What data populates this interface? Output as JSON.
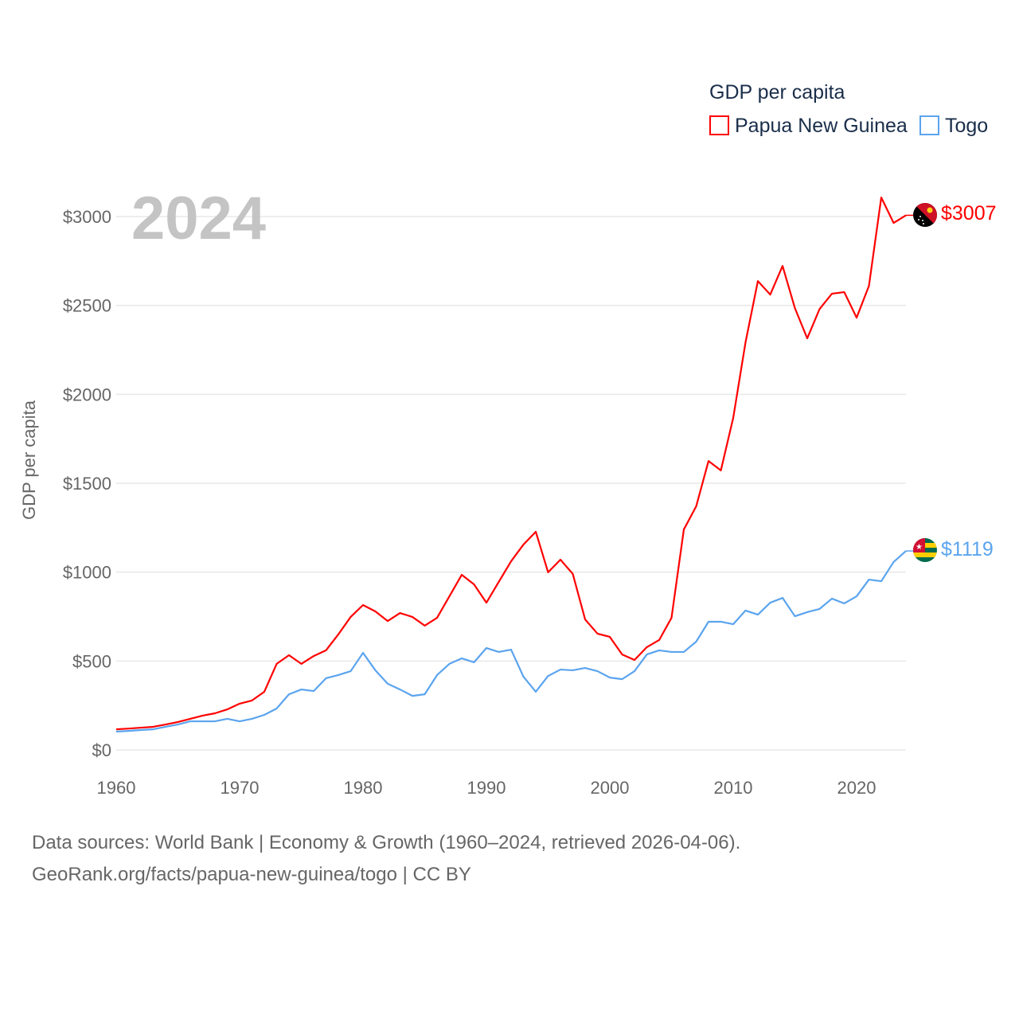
{
  "chart_data": {
    "type": "line",
    "title": "GDP per capita",
    "year_label": "2024",
    "ylabel": "GDP per capita",
    "xlabel": "",
    "xlim": [
      1960,
      2024
    ],
    "ylim": [
      0,
      3000
    ],
    "x_ticks": [
      "1960",
      "1970",
      "1980",
      "1990",
      "2000",
      "2010",
      "2020"
    ],
    "y_ticks": [
      "$0",
      "$500",
      "$1000",
      "$1500",
      "$2000",
      "$2500",
      "$3000"
    ],
    "grid": true,
    "legend_placement": "top-right",
    "legend_title": "GDP per capita",
    "x": [
      1960,
      1961,
      1962,
      1963,
      1964,
      1965,
      1966,
      1967,
      1968,
      1969,
      1970,
      1971,
      1972,
      1973,
      1974,
      1975,
      1976,
      1977,
      1978,
      1979,
      1980,
      1981,
      1982,
      1983,
      1984,
      1985,
      1986,
      1987,
      1988,
      1989,
      1990,
      1991,
      1992,
      1993,
      1994,
      1995,
      1996,
      1997,
      1998,
      1999,
      2000,
      2001,
      2002,
      2003,
      2004,
      2005,
      2006,
      2007,
      2008,
      2009,
      2010,
      2011,
      2012,
      2013,
      2014,
      2015,
      2016,
      2017,
      2018,
      2019,
      2020,
      2021,
      2022,
      2023,
      2024
    ],
    "series": [
      {
        "name": "Papua New Guinea",
        "color": "#ff0000",
        "end_label": "$3007",
        "values": [
          116,
          120,
          125,
          130,
          143,
          157,
          175,
          193,
          206,
          228,
          260,
          278,
          327,
          484,
          533,
          484,
          528,
          560,
          650,
          748,
          815,
          779,
          725,
          770,
          748,
          699,
          743,
          864,
          985,
          931,
          828,
          945,
          1061,
          1155,
          1227,
          999,
          1070,
          990,
          734,
          654,
          636,
          537,
          506,
          578,
          618,
          743,
          1240,
          1370,
          1625,
          1572,
          1867,
          2293,
          2637,
          2561,
          2722,
          2485,
          2315,
          2480,
          2566,
          2575,
          2431,
          2610,
          3107,
          2964,
          3007
        ]
      },
      {
        "name": "Togo",
        "color": "#5ba4ee",
        "end_label": "$1119",
        "values": [
          103,
          107,
          112,
          116,
          130,
          143,
          161,
          161,
          161,
          175,
          161,
          175,
          197,
          233,
          313,
          340,
          331,
          403,
          421,
          443,
          546,
          448,
          372,
          340,
          304,
          313,
          421,
          484,
          515,
          493,
          573,
          551,
          564,
          412,
          327,
          416,
          452,
          448,
          461,
          443,
          407,
          398,
          443,
          537,
          560,
          551,
          551,
          609,
          721,
          721,
          707,
          784,
          761,
          828,
          855,
          752,
          775,
          793,
          851,
          824,
          864,
          958,
          949,
          1057,
          1119
        ]
      }
    ]
  },
  "footer": {
    "line1": "Data sources: World Bank | Economy & Growth (1960–2024, retrieved 2026-04-06).",
    "line2": "GeoRank.org/facts/papua-new-guinea/togo | CC BY"
  }
}
